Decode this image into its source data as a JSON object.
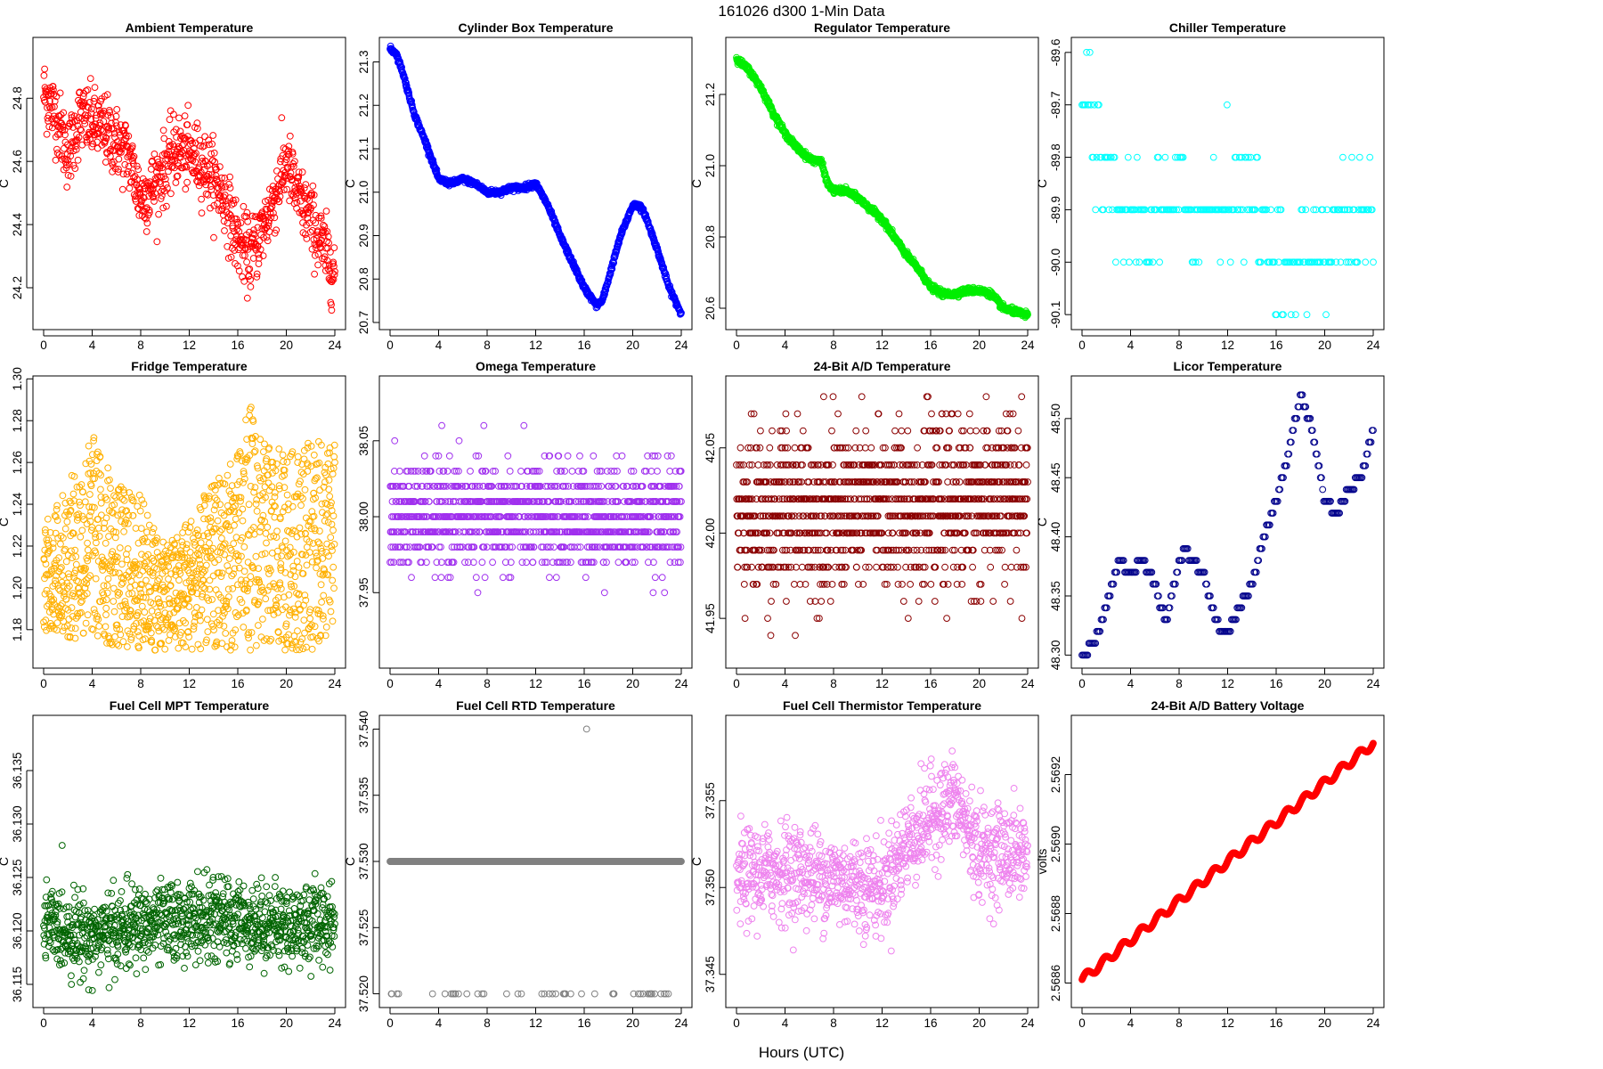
{
  "title": "161026   d300   1-Min Data",
  "xlabel": "Hours (UTC)",
  "chart_data": [
    {
      "type": "scatter",
      "title": "Ambient Temperature",
      "ylabel": "C",
      "color": "#ff0000",
      "xlim": [
        0,
        24
      ],
      "ylim": [
        24.09,
        24.97
      ],
      "xticks": [
        "0",
        "4",
        "8",
        "12",
        "16",
        "20",
        "24"
      ],
      "yticks": [
        "24.2",
        "24.4",
        "24.6",
        "24.8"
      ],
      "pattern": "noisy",
      "x": [
        0,
        1,
        2,
        3,
        4,
        5,
        6,
        7,
        8,
        9,
        10,
        11,
        12,
        13,
        14,
        15,
        16,
        17,
        18,
        19,
        20,
        21,
        22,
        23,
        24
      ],
      "y": [
        24.82,
        24.75,
        24.62,
        24.74,
        24.72,
        24.7,
        24.66,
        24.62,
        24.48,
        24.52,
        24.58,
        24.64,
        24.62,
        24.6,
        24.55,
        24.47,
        24.35,
        24.3,
        24.38,
        24.48,
        24.6,
        24.48,
        24.42,
        24.33,
        24.25
      ],
      "noise": 0.07,
      "n": 900
    },
    {
      "type": "scatter",
      "title": "Cylinder Box Temperature",
      "ylabel": "C",
      "color": "#0000ff",
      "xlim": [
        0,
        24
      ],
      "ylim": [
        20.7,
        21.34
      ],
      "xticks": [
        "0",
        "4",
        "8",
        "12",
        "16",
        "20",
        "24"
      ],
      "yticks": [
        "20.7",
        "20.8",
        "20.9",
        "21.0",
        "21.1",
        "21.2",
        "21.3"
      ],
      "pattern": "smooth",
      "x": [
        0,
        0.5,
        1,
        2,
        3,
        4,
        5,
        6,
        7,
        8,
        9,
        10,
        11,
        12,
        13,
        14,
        15,
        16,
        17,
        17.5,
        18,
        19,
        20,
        20.5,
        21,
        22,
        23,
        24
      ],
      "y": [
        21.33,
        21.32,
        21.28,
        21.18,
        21.11,
        21.03,
        21.02,
        21.03,
        21.02,
        21.0,
        21.0,
        21.01,
        21.01,
        21.02,
        20.97,
        20.9,
        20.84,
        20.78,
        20.74,
        20.75,
        20.8,
        20.9,
        20.97,
        20.97,
        20.95,
        20.87,
        20.78,
        20.72
      ],
      "noise": 0.003,
      "n": 1100
    },
    {
      "type": "scatter",
      "title": "Regulator Temperature",
      "ylabel": "C",
      "color": "#00ee00",
      "xlim": [
        0,
        24
      ],
      "ylim": [
        20.56,
        21.34
      ],
      "xticks": [
        "0",
        "4",
        "8",
        "12",
        "16",
        "20",
        "24"
      ],
      "yticks": [
        "20.6",
        "20.8",
        "21.0",
        "21.2"
      ],
      "pattern": "smooth",
      "x": [
        0,
        1,
        2,
        3,
        4,
        5,
        6,
        7,
        7.5,
        8,
        9,
        10,
        11,
        12,
        13,
        14,
        15,
        16,
        17,
        18,
        19,
        20,
        21,
        22,
        23,
        24
      ],
      "y": [
        21.3,
        21.27,
        21.22,
        21.15,
        21.09,
        21.05,
        21.02,
        21.01,
        20.95,
        20.93,
        20.93,
        20.91,
        20.88,
        20.85,
        20.8,
        20.75,
        20.71,
        20.66,
        20.64,
        20.64,
        20.65,
        20.65,
        20.64,
        20.6,
        20.59,
        20.58
      ],
      "noise": 0.004,
      "n": 1100
    },
    {
      "type": "scatter",
      "title": "Chiller Temperature",
      "ylabel": "C",
      "color": "#00ffff",
      "xlim": [
        0,
        24
      ],
      "ylim": [
        -90.115,
        -89.585
      ],
      "xticks": [
        "0",
        "4",
        "8",
        "12",
        "16",
        "20",
        "24"
      ],
      "yticks": [
        "-90.1",
        "-90.0",
        "-89.9",
        "-89.8",
        "-89.7",
        "-89.6"
      ],
      "pattern": "quant",
      "x": [
        0,
        1,
        2,
        3,
        4,
        6,
        8,
        10,
        12,
        14,
        16,
        17,
        18,
        20,
        22,
        24
      ],
      "y": [
        -89.68,
        -89.72,
        -89.86,
        -89.9,
        -89.92,
        -89.9,
        -89.88,
        -89.92,
        -89.85,
        -89.88,
        -89.98,
        -90.02,
        -90.0,
        -89.96,
        -89.92,
        -89.92
      ],
      "noise": 0.05,
      "step": 0.1,
      "n": 260
    },
    {
      "type": "scatter",
      "title": "Fridge Temperature",
      "ylabel": "C",
      "color": "#ffb000",
      "xlim": [
        0,
        24
      ],
      "ylim": [
        1.165,
        1.298
      ],
      "xticks": [
        "0",
        "4",
        "8",
        "12",
        "16",
        "20",
        "24"
      ],
      "yticks": [
        "1.18",
        "1.20",
        "1.22",
        "1.24",
        "1.26",
        "1.28",
        "1.30"
      ],
      "pattern": "band",
      "x": [
        0,
        2,
        4,
        6,
        8,
        10,
        12,
        14,
        16,
        17,
        18,
        20,
        22,
        24
      ],
      "lo": [
        1.18,
        1.175,
        1.175,
        1.17,
        1.17,
        1.17,
        1.17,
        1.17,
        1.17,
        1.17,
        1.17,
        1.17,
        1.17,
        1.175
      ],
      "hi": [
        1.23,
        1.25,
        1.275,
        1.25,
        1.245,
        1.22,
        1.235,
        1.25,
        1.265,
        1.29,
        1.27,
        1.265,
        1.27,
        1.27
      ],
      "n": 1300
    },
    {
      "type": "scatter",
      "title": "Omega Temperature",
      "ylabel": "",
      "color": "#a030ee",
      "xlim": [
        0,
        24
      ],
      "ylim": [
        37.905,
        38.088
      ],
      "xticks": [
        "0",
        "4",
        "8",
        "12",
        "16",
        "20",
        "24"
      ],
      "yticks": [
        "37.95",
        "38.00",
        "38.05"
      ],
      "pattern": "quant",
      "x": [
        0,
        24
      ],
      "y": [
        38.0,
        38.0
      ],
      "noise": 0.017,
      "step": 0.01,
      "n": 1200
    },
    {
      "type": "scatter",
      "title": "24-Bit A/D Temperature",
      "ylabel": "",
      "color": "#8b0000",
      "xlim": [
        0,
        24
      ],
      "ylim": [
        41.925,
        42.088
      ],
      "xticks": [
        "0",
        "4",
        "8",
        "12",
        "16",
        "20",
        "24"
      ],
      "yticks": [
        "41.95",
        "42.00",
        "42.05"
      ],
      "pattern": "quant",
      "x": [
        0,
        24
      ],
      "y": [
        42.01,
        42.02
      ],
      "noise": 0.024,
      "step": 0.01,
      "n": 1300
    },
    {
      "type": "scatter",
      "title": "Licor Temperature",
      "ylabel": "C",
      "color": "#00008b",
      "xlim": [
        0,
        24
      ],
      "ylim": [
        48.295,
        48.53
      ],
      "xticks": [
        "0",
        "4",
        "8",
        "12",
        "16",
        "20",
        "24"
      ],
      "yticks": [
        "48.30",
        "48.35",
        "48.40",
        "48.45",
        "48.50"
      ],
      "pattern": "smoothquant",
      "x": [
        0,
        1,
        2,
        3,
        4,
        5,
        6,
        6.5,
        7,
        8,
        8.5,
        9,
        10,
        11,
        11.5,
        12,
        13,
        14,
        15,
        16,
        17,
        18,
        19,
        20,
        21,
        22,
        23,
        24
      ],
      "y": [
        48.3,
        48.31,
        48.34,
        48.38,
        48.37,
        48.38,
        48.36,
        48.34,
        48.33,
        48.38,
        48.39,
        48.38,
        48.37,
        48.33,
        48.32,
        48.32,
        48.34,
        48.36,
        48.4,
        48.43,
        48.47,
        48.52,
        48.49,
        48.43,
        48.42,
        48.44,
        48.45,
        48.49
      ],
      "noise": 0.0,
      "step": 0.01,
      "n": 260
    },
    {
      "type": "scatter",
      "title": "Fuel Cell MPT Temperature",
      "ylabel": "C",
      "color": "#006400",
      "xlim": [
        0,
        24
      ],
      "ylim": [
        36.1135,
        36.1395
      ],
      "xticks": [
        "0",
        "4",
        "8",
        "12",
        "16",
        "20",
        "24"
      ],
      "yticks": [
        "36.115",
        "36.120",
        "36.125",
        "36.130",
        "36.135"
      ],
      "pattern": "noisy",
      "x": [
        0,
        4,
        8,
        12,
        16,
        20,
        24
      ],
      "y": [
        36.1205,
        36.1195,
        36.1205,
        36.121,
        36.121,
        36.1205,
        36.121
      ],
      "noise": 0.0023,
      "n": 1100
    },
    {
      "type": "scatter",
      "title": "Fuel Cell RTD Temperature",
      "ylabel": "C",
      "color": "#808080",
      "xlim": [
        0,
        24
      ],
      "ylim": [
        37.5195,
        37.5405
      ],
      "xticks": [
        "0",
        "4",
        "8",
        "12",
        "16",
        "20",
        "24"
      ],
      "yticks": [
        "37.520",
        "37.525",
        "37.530",
        "37.535",
        "37.540"
      ],
      "pattern": "constant",
      "x": [
        0,
        24
      ],
      "y": [
        37.53,
        37.53
      ],
      "outlier": {
        "x": 16.2,
        "y": 37.54
      },
      "low_value": 37.52,
      "n": 1400
    },
    {
      "type": "scatter",
      "title": "Fuel Cell Thermistor Temperature",
      "ylabel": "C",
      "color": "#ee82ee",
      "xlim": [
        0,
        24
      ],
      "ylim": [
        37.3435,
        37.3595
      ],
      "xticks": [
        "0",
        "4",
        "8",
        "12",
        "16",
        "20",
        "24"
      ],
      "yticks": [
        "37.345",
        "37.350",
        "37.355"
      ],
      "pattern": "noisy",
      "x": [
        0,
        4,
        8,
        12,
        14,
        16,
        18,
        20,
        24
      ],
      "y": [
        37.3505,
        37.351,
        37.3505,
        37.35,
        37.3525,
        37.354,
        37.355,
        37.352,
        37.352
      ],
      "noise": 0.0017,
      "n": 1000
    },
    {
      "type": "scatter",
      "title": "24-Bit A/D Battery Voltage",
      "ylabel": "volts",
      "color": "#ff0000",
      "xlim": [
        0,
        24
      ],
      "ylim": [
        2.56855,
        2.56935
      ],
      "xticks": [
        "0",
        "4",
        "8",
        "12",
        "16",
        "20",
        "24"
      ],
      "yticks": [
        "2.5686",
        "2.5688",
        "2.5690",
        "2.5692"
      ],
      "pattern": "wavy",
      "x": [
        0,
        24
      ],
      "y": [
        2.56861,
        2.56929
      ],
      "noise": 0.0,
      "n": 1300
    }
  ]
}
